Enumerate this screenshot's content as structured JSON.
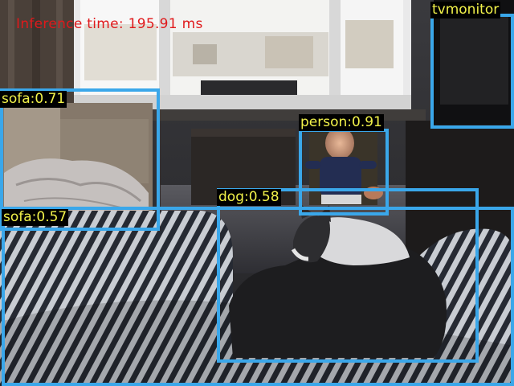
{
  "overlay": {
    "inference_text": "Inference time: 195.91 ms",
    "text_color": "#e0191b"
  },
  "box_style": {
    "border_color": "#3aa7ea",
    "label_background": "#000000",
    "label_color": "#f2f24a"
  },
  "detections": [
    {
      "label": "sofa:0.71"
    },
    {
      "label": "sofa:0.57"
    },
    {
      "label": "person:0.91"
    },
    {
      "label": "dog:0.58"
    },
    {
      "label": "tvmonitor"
    }
  ]
}
